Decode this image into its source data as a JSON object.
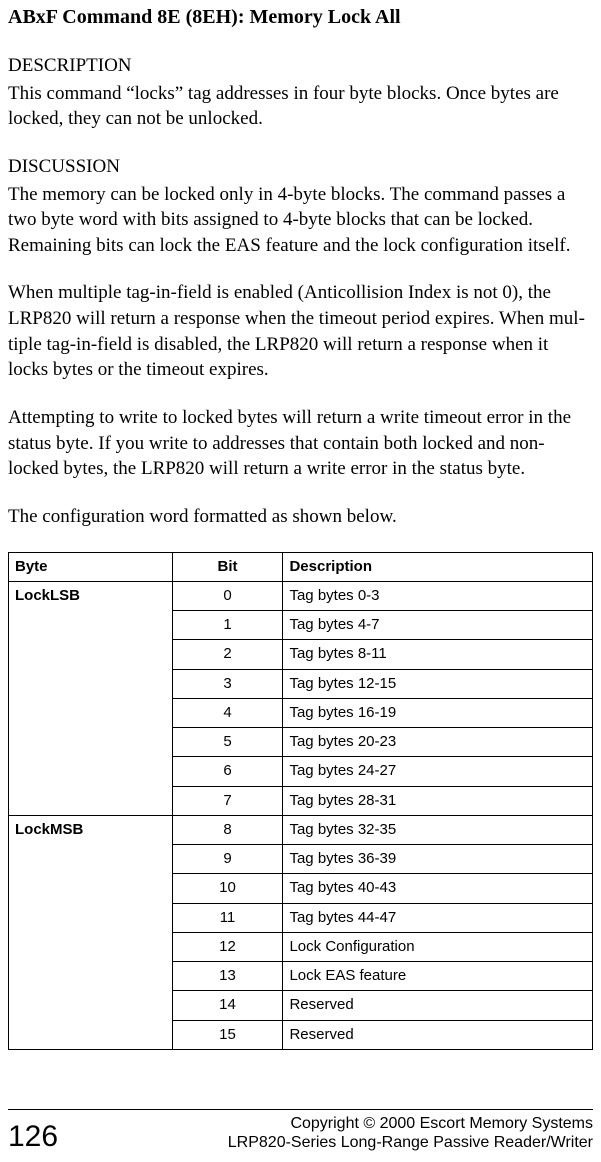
{
  "title": "ABxF Command 8E (8EH): Memory Lock All",
  "description_label": "DESCRIPTION",
  "description_text": "This command “locks” tag addresses in four byte blocks. Once bytes are locked, they can not be unlocked.",
  "discussion_label": "DISCUSSION",
  "discussion_p1": "The memory can be locked only in 4-byte blocks. The command passes a two byte word with bits assigned to 4-byte blocks that can be locked. Remaining bits can lock the EAS feature and the lock configuration itself.",
  "discussion_p2": "When multiple tag-in-field is enabled (Anticollision Index is not 0), the LRP820 will return a response when the timeout period expires. When mul­tiple tag-in-field is disabled, the LRP820 will return a response when it locks bytes or the timeout expires.",
  "discussion_p3": "Attempting to write to locked bytes will return a write timeout error in the status byte.  If you write to addresses that contain both locked and non-locked bytes, the LRP820 will return a write error in the status byte.",
  "discussion_p4": "The configuration word formatted as shown below.",
  "table": {
    "headers": {
      "byte": "Byte",
      "bit": "Bit",
      "description": "Description"
    },
    "groups": [
      {
        "byte": "LockLSB",
        "rows": [
          {
            "bit": "0",
            "desc": "Tag bytes 0-3"
          },
          {
            "bit": "1",
            "desc": "Tag bytes 4-7"
          },
          {
            "bit": "2",
            "desc": "Tag bytes 8-11"
          },
          {
            "bit": "3",
            "desc": "Tag bytes 12-15"
          },
          {
            "bit": "4",
            "desc": "Tag bytes 16-19"
          },
          {
            "bit": "5",
            "desc": "Tag bytes 20-23"
          },
          {
            "bit": "6",
            "desc": "Tag bytes 24-27"
          },
          {
            "bit": "7",
            "desc": "Tag bytes 28-31"
          }
        ]
      },
      {
        "byte": "LockMSB",
        "rows": [
          {
            "bit": "8",
            "desc": "Tag bytes 32-35"
          },
          {
            "bit": "9",
            "desc": "Tag bytes 36-39"
          },
          {
            "bit": "10",
            "desc": "Tag bytes 40-43"
          },
          {
            "bit": "11",
            "desc": "Tag bytes 44-47"
          },
          {
            "bit": "12",
            "desc": "Lock Configuration"
          },
          {
            "bit": "13",
            "desc": "Lock EAS feature"
          },
          {
            "bit": "14",
            "desc": "Reserved"
          },
          {
            "bit": "15",
            "desc": "Reserved"
          }
        ]
      }
    ]
  },
  "footer": {
    "page": "126",
    "copyright_line1": "Copyright © 2000 Escort Memory Systems",
    "copyright_line2": "LRP820-Series Long-Range Passive Reader/Writer"
  }
}
